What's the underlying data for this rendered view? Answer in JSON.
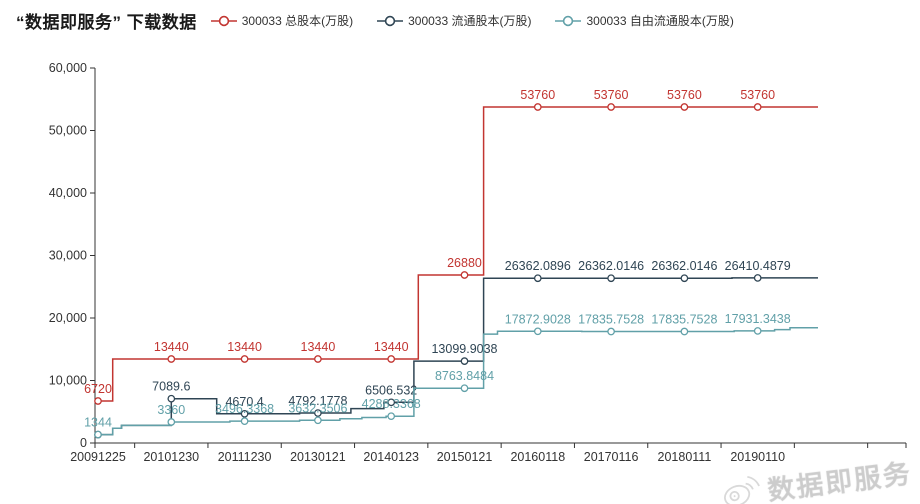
{
  "title": "“数据即服务” 下载数据",
  "legend": {
    "items": [
      {
        "label": "300033 总股本(万股)",
        "color": "#c23531"
      },
      {
        "label": "300033 流通股本(万股)",
        "color": "#2f4554"
      },
      {
        "label": "300033 自由流通股本(万股)",
        "color": "#61a0a8"
      }
    ]
  },
  "watermark": {
    "text": "数据即服务",
    "icon": "weibo-icon"
  },
  "chart_data": {
    "type": "line",
    "subtype": "step",
    "title": "“数据即服务” 下载数据",
    "categories": [
      "20091225",
      "20101230",
      "20111230",
      "20130121",
      "20140123",
      "20150121",
      "20160118",
      "20170116",
      "20180111",
      "20190110"
    ],
    "xlabel": "",
    "ylabel": "",
    "ylim": [
      0,
      60000
    ],
    "yticks": [
      "0",
      "10,000",
      "20,000",
      "30,000",
      "40,000",
      "50,000",
      "60,000"
    ],
    "grid": false,
    "legend_position": "top",
    "axis_color": "#333333",
    "series": [
      {
        "name": "300033 总股本(万股)",
        "color": "#c23531",
        "values": [
          6720,
          13440,
          13440,
          13440,
          13440,
          26880,
          53760,
          53760,
          53760,
          53760
        ],
        "labels": [
          "6720",
          "13440",
          "13440",
          "13440",
          "13440",
          "26880",
          "53760",
          "53760",
          "53760",
          "53760"
        ],
        "breakpoints": [
          [
            0,
            6720
          ],
          [
            0.2,
            13440
          ],
          [
            4.37,
            26880
          ],
          [
            5.26,
            53760
          ]
        ]
      },
      {
        "name": "300033 流通股本(万股)",
        "color": "#2f4554",
        "values": [
          1344,
          7089.6,
          4670.4,
          4792.1778,
          6506.532,
          13099.9038,
          26362.0896,
          26362.0146,
          26362.0146,
          26410.4879
        ],
        "labels": [
          null,
          "7089.6",
          "4670.4",
          "4792.1778",
          "6506.532",
          "13099.9038",
          "26362.0896",
          "26362.0146",
          "26362.0146",
          "26410.4879"
        ],
        "breakpoints": [
          [
            0,
            1344
          ],
          [
            0.2,
            2352
          ],
          [
            0.32,
            2822
          ],
          [
            1.0,
            7089.6
          ],
          [
            1.62,
            4670.4
          ],
          [
            2.75,
            4792.1778
          ],
          [
            3.45,
            5500
          ],
          [
            3.9,
            6506.532
          ],
          [
            4.31,
            13099.9038
          ],
          [
            5.26,
            26362.0896
          ],
          [
            6.5,
            26362.0146
          ],
          [
            8.65,
            26410.4879
          ]
        ]
      },
      {
        "name": "300033 自由流通股本(万股)",
        "color": "#61a0a8",
        "values": [
          1344,
          3360,
          3496.3368,
          3632.3506,
          4288.3368,
          8763.8484,
          17872.9028,
          17835.7528,
          17835.7528,
          17931.3438
        ],
        "labels": [
          "1344",
          "3360",
          "3496.3368",
          "3632.3506",
          "4288.3368",
          "8763.8484",
          "17872.9028",
          "17835.7528",
          "17835.7528",
          "17931.3438"
        ],
        "breakpoints": [
          [
            0,
            1344
          ],
          [
            0.2,
            2352
          ],
          [
            0.32,
            2822
          ],
          [
            1.0,
            3360
          ],
          [
            1.8,
            3496.3368
          ],
          [
            2.75,
            3632.3506
          ],
          [
            3.3,
            3890
          ],
          [
            3.6,
            4080
          ],
          [
            3.93,
            4288.3368
          ],
          [
            4.31,
            8763.8484
          ],
          [
            5.26,
            17420
          ],
          [
            5.45,
            17872.9028
          ],
          [
            6.6,
            17835.7528
          ],
          [
            8.68,
            17931.3438
          ],
          [
            9.23,
            18150
          ],
          [
            9.44,
            18430
          ]
        ]
      }
    ]
  }
}
